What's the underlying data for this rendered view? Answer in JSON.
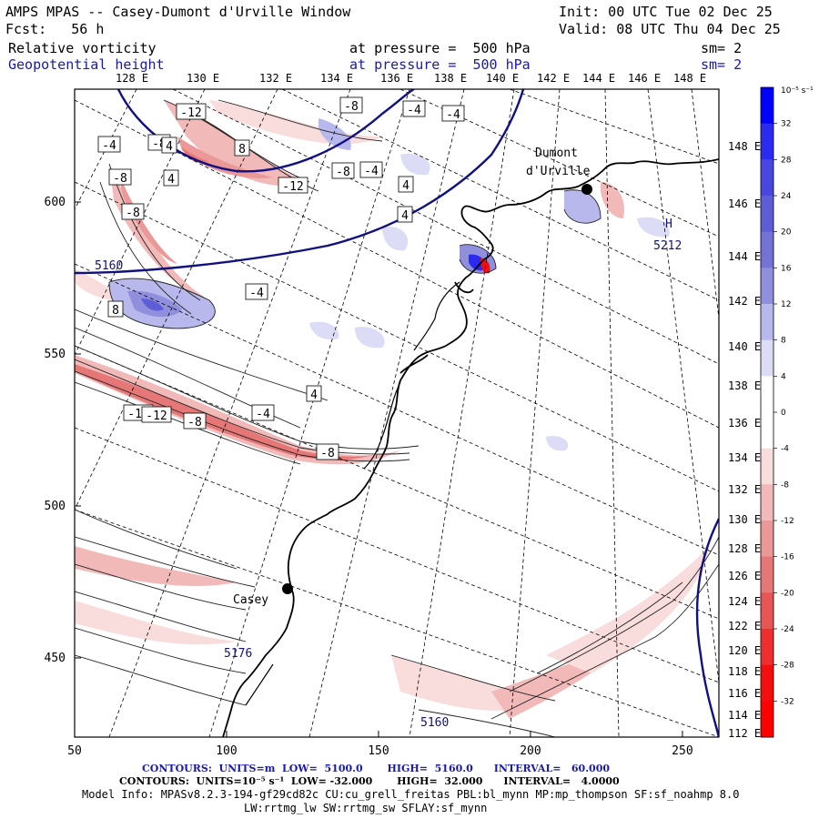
{
  "header": {
    "title": "AMPS MPAS -- Casey-Dumont d'Urville Window",
    "init": "Init: 00 UTC Tue 02 Dec 25",
    "fcst": "Fcst:   56 h",
    "valid": "Valid: 08 UTC Thu 04 Dec 25",
    "field1_name": "Relative vorticity",
    "field1_level": "at pressure =  500 hPa",
    "field1_sm": "sm= 2",
    "field2_name": "Geopotential height",
    "field2_level": "at pressure =  500 hPa",
    "field2_sm": "sm= 2"
  },
  "top_lon_labels": [
    "128 E",
    "130 E",
    "132 E",
    "134 E",
    "136 E",
    "138 E",
    "140 E",
    "142 E",
    "144 E",
    "146 E",
    "148 E"
  ],
  "right_lon_labels": [
    "148 E",
    "146 E",
    "144 E",
    "142 E",
    "140 E",
    "138 E",
    "136 E",
    "134 E",
    "132 E",
    "130 E",
    "128 E",
    "126 E",
    "124 E",
    "122 E",
    "120 E",
    "118 E",
    "116 E",
    "114 E",
    "112 E"
  ],
  "x_axis": [
    50,
    100,
    150,
    200,
    250
  ],
  "y_axis": [
    600,
    550,
    500,
    450
  ],
  "stations": [
    {
      "name": "Dumont",
      "name2": "d'Urville"
    },
    {
      "name": "Casey"
    }
  ],
  "height_labels": [
    "5160",
    "5212",
    "5176",
    "5160"
  ],
  "high_label": "H",
  "colorbar": {
    "unit": "10⁻⁵ s⁻¹",
    "ticks": [
      "32",
      "28",
      "24",
      "20",
      "16",
      "12",
      "8",
      "4",
      "0",
      "-4",
      "-8",
      "-12",
      "-16",
      "-20",
      "-24",
      "-28",
      "-32"
    ],
    "colors": [
      "#0000ff",
      "#2a2af0",
      "#4848e0",
      "#5d5dd6",
      "#7373d6",
      "#8f8fdd",
      "#b8b8ec",
      "#dcdcf6",
      "#ffffff",
      "#ffffff",
      "#f9dcdc",
      "#f2b9b9",
      "#ea9898",
      "#e67777",
      "#e65656",
      "#ee2f2f",
      "#f60e0e",
      "#ff0000"
    ]
  },
  "vort_labels": [
    "-12",
    "-8",
    "-4",
    "4",
    "8",
    "-12",
    "-8",
    "-4",
    "4",
    "-4",
    "-4",
    "-8",
    "-8",
    "-4",
    "-12",
    "4",
    "-8",
    "4",
    "8",
    "4",
    "-12",
    "-8",
    "-4",
    "-8"
  ],
  "footer": {
    "line1": "CONTOURS:  UNITS=m  LOW=  5100.0       HIGH=  5160.0      INTERVAL=   60.000",
    "line2": "CONTOURS:  UNITS=10⁻⁵ s⁻¹  LOW= -32.000       HIGH=  32.000      INTERVAL=   4.0000",
    "line3": "Model Info: MPASv8.2.3-194-gf29cd82c CU:cu_grell_freitas PBL:bl_mynn MP:mp_thompson SF:sf_noahmp 8.0",
    "line4": "LW:rrtmg_lw SW:rrtmg_sw SFLAY:sf_mynn"
  }
}
